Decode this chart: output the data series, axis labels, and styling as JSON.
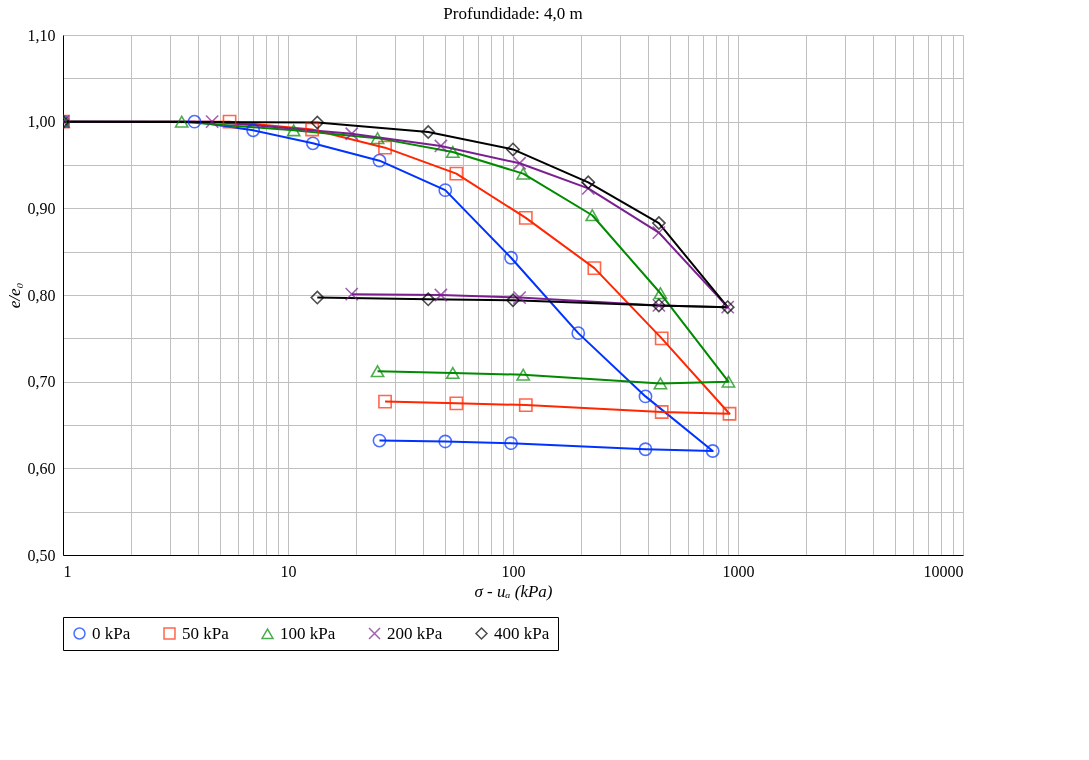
{
  "chart_data": {
    "type": "line",
    "title": "Profundidade: 4,0 m",
    "xlabel": "σ - uₐ (kPa)",
    "ylabel": "e/e₀",
    "log": "x",
    "grid": true,
    "legend": "bottom",
    "xlim": [
      1,
      10000
    ],
    "xticks": [
      1,
      10,
      100,
      1000,
      10000
    ],
    "ylim": [
      0.5,
      1.1
    ],
    "yticks": [
      {
        "value": 0.5,
        "label": "0,50"
      },
      {
        "value": 0.6,
        "label": "0,60"
      },
      {
        "value": 0.7,
        "label": "0,70"
      },
      {
        "value": 0.8,
        "label": "0,80"
      },
      {
        "value": 0.9,
        "label": "0,90"
      },
      {
        "value": 1.0,
        "label": "1,00"
      },
      {
        "value": 1.1,
        "label": "1,10"
      }
    ],
    "series": [
      {
        "name": "0 kPa",
        "color": "#0033ff",
        "marker": "circle",
        "x": [
          1,
          3.84,
          7,
          12.9,
          25.5,
          50,
          98,
          195,
          388,
          772,
          388,
          98,
          50,
          25.5
        ],
        "values": [
          1.0,
          1.0,
          0.99,
          0.975,
          0.955,
          0.921,
          0.843,
          0.756,
          0.683,
          0.62,
          0.622,
          0.629,
          0.631,
          0.632
        ]
      },
      {
        "name": "50 kPa",
        "color": "#ff2600",
        "marker": "square",
        "x": [
          1,
          5.5,
          12.8,
          27,
          56,
          114,
          230,
          458,
          917,
          458,
          114,
          56,
          27
        ],
        "values": [
          1.0,
          1.0,
          0.991,
          0.97,
          0.94,
          0.889,
          0.831,
          0.75,
          0.663,
          0.665,
          0.673,
          0.675,
          0.677
        ]
      },
      {
        "name": "100 kPa",
        "color": "#008a00",
        "marker": "triangle",
        "x": [
          1,
          3.37,
          10.6,
          25,
          54,
          111,
          225,
          452,
          907,
          452,
          111,
          54,
          25
        ],
        "values": [
          1.0,
          1.0,
          0.99,
          0.981,
          0.965,
          0.94,
          0.892,
          0.802,
          0.7,
          0.698,
          0.708,
          0.71,
          0.712
        ]
      },
      {
        "name": "200 kPa",
        "color": "#7a1f8f",
        "marker": "cross",
        "x": [
          1,
          4.6,
          19.2,
          47.8,
          107,
          216,
          445,
          900,
          445,
          107,
          47.8,
          19.2
        ],
        "values": [
          1.0,
          1.0,
          0.986,
          0.972,
          0.952,
          0.923,
          0.872,
          0.786,
          0.788,
          0.797,
          0.8,
          0.801
        ]
      },
      {
        "name": "400 kPa",
        "color": "#000000",
        "marker": "diamond",
        "x": [
          1,
          13.5,
          42,
          100,
          216,
          445,
          900,
          445,
          100,
          42,
          13.5
        ],
        "values": [
          1.0,
          0.999,
          0.988,
          0.968,
          0.93,
          0.883,
          0.786,
          0.788,
          0.794,
          0.795,
          0.797
        ]
      }
    ]
  }
}
